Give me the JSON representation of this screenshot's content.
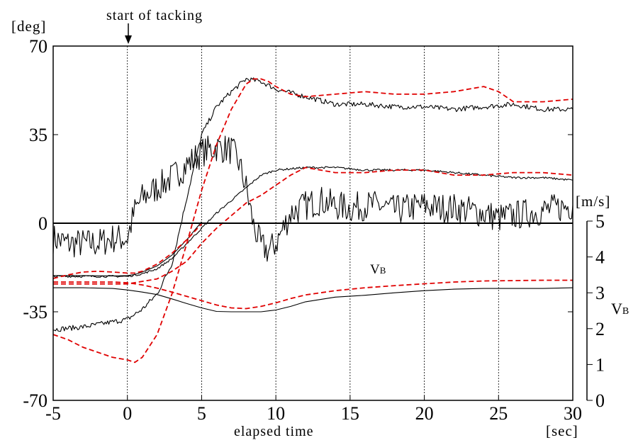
{
  "chart_data": {
    "type": "line",
    "xlabel": "elapsed time",
    "x_unit": "[sec]",
    "ylabel_left": "[deg]",
    "ylabel_right_unit": "[m/s]",
    "ylabel_right_main": "V",
    "ylabel_right_sub": "B",
    "curve_label_main": "V",
    "curve_label_sub": "B",
    "annotation": "start of tacking",
    "xlim": [
      -5,
      30
    ],
    "ylim_left": [
      -70,
      70
    ],
    "ylim_right": [
      0,
      5
    ],
    "x_ticks": [
      "-5",
      "0",
      "5",
      "10",
      "15",
      "20",
      "25",
      "30"
    ],
    "y_left_ticks": [
      "70",
      "35",
      "0",
      "-35",
      "-70"
    ],
    "y_right_ticks": [
      "5",
      "4",
      "3",
      "2",
      "1",
      "0"
    ],
    "vertical_gridlines": [
      0,
      5,
      10,
      15,
      20,
      25
    ],
    "zero_line": true,
    "colors": {
      "measured": "#000000",
      "simulated": "#e00000"
    },
    "series": [
      {
        "style": "solid",
        "color": "#000000",
        "axis": "left",
        "noise": 6,
        "x": [
          -5,
          -4,
          -3,
          -2,
          -1,
          0,
          0.5,
          1,
          2,
          3,
          4,
          5,
          6,
          7,
          7.5,
          8,
          8.5,
          9,
          9.5,
          10,
          10.5,
          11,
          12,
          13,
          14,
          15,
          16,
          17,
          18,
          19,
          20,
          21,
          22,
          23,
          24,
          25,
          26,
          27,
          28,
          29,
          30
        ],
        "y": [
          -6,
          -8,
          -8,
          -8,
          -6,
          -6,
          5,
          10,
          14,
          18,
          23,
          28,
          30,
          29,
          24,
          14,
          -1,
          -9,
          -11,
          -8,
          -2,
          4,
          7,
          9,
          7,
          6,
          7,
          7,
          5,
          6,
          7,
          6,
          6,
          5,
          4,
          2,
          3,
          4,
          5,
          6,
          7
        ]
      },
      {
        "style": "solid",
        "color": "#000000",
        "axis": "left",
        "noise": 1,
        "x": [
          -5,
          -3,
          -1,
          0,
          1,
          2,
          3,
          4,
          5,
          6,
          7,
          8,
          9,
          10,
          12,
          14,
          16,
          18,
          20,
          22,
          24,
          26,
          28,
          30
        ],
        "y": [
          -42,
          -41,
          -39,
          -38,
          -34,
          -28,
          -16,
          10,
          35,
          46,
          52,
          57,
          56,
          53,
          50,
          47,
          47,
          46,
          46,
          45,
          46,
          47,
          45,
          45
        ]
      },
      {
        "style": "solid",
        "color": "#000000",
        "axis": "left",
        "noise": 0.4,
        "x": [
          -5,
          -3,
          -1,
          0,
          1,
          2,
          3,
          4,
          5,
          6,
          7,
          8,
          9,
          10,
          12,
          14,
          16,
          18,
          20,
          22,
          24,
          26,
          28,
          30
        ],
        "y": [
          -21,
          -21,
          -21,
          -21,
          -20,
          -18,
          -14,
          -8,
          -2,
          4,
          9,
          14,
          19,
          21,
          22,
          22,
          21,
          21,
          21,
          20,
          19,
          18,
          18,
          17
        ]
      },
      {
        "style": "dashed",
        "color": "#e00000",
        "axis": "left",
        "x": [
          -5,
          -4,
          -3,
          -2,
          -1,
          0,
          0.5,
          1,
          2,
          3,
          4,
          5,
          6,
          7,
          8,
          8.5,
          9,
          9.5,
          10,
          11,
          12,
          14,
          16,
          18,
          20,
          22,
          24,
          25,
          26,
          28,
          30
        ],
        "y": [
          -44,
          -46,
          -49,
          -51,
          -53,
          -54,
          -55,
          -53,
          -44,
          -28,
          -8,
          13,
          31,
          45,
          55,
          57,
          57,
          56,
          54,
          51,
          50,
          51,
          52,
          51,
          51,
          52,
          54,
          52,
          48,
          48,
          49
        ]
      },
      {
        "style": "dashed",
        "color": "#e00000",
        "axis": "left",
        "x": [
          -5,
          -3,
          -1,
          0,
          1,
          2,
          3,
          4,
          5,
          6,
          7,
          8,
          9,
          10,
          11,
          12,
          13,
          14,
          16,
          18,
          20,
          22,
          24,
          26,
          28,
          30
        ],
        "y": [
          -24,
          -24,
          -24,
          -24,
          -23,
          -22,
          -19,
          -15,
          -8,
          -2,
          3,
          8,
          11,
          15,
          19,
          22,
          21,
          20,
          20,
          21,
          21,
          19,
          19,
          20,
          20,
          19
        ]
      },
      {
        "style": "solid",
        "color": "#000000",
        "axis": "right",
        "x": [
          -5,
          -3,
          -1,
          0,
          1,
          2,
          3,
          4,
          5,
          6,
          7,
          8,
          9,
          10,
          11,
          12,
          14,
          16,
          18,
          20,
          22,
          24,
          26,
          28,
          30
        ],
        "y": [
          3.14,
          3.14,
          3.12,
          3.08,
          3.02,
          2.95,
          2.83,
          2.7,
          2.58,
          2.48,
          2.47,
          2.47,
          2.47,
          2.52,
          2.62,
          2.75,
          2.88,
          2.93,
          3.0,
          3.06,
          3.1,
          3.12,
          3.12,
          3.12,
          3.14
        ]
      },
      {
        "style": "dashed",
        "color": "#e00000",
        "axis": "right",
        "x": [
          -5,
          -3,
          -1,
          0,
          1,
          2,
          3,
          4,
          5,
          6,
          7,
          8,
          9,
          10,
          11,
          12,
          14,
          16,
          18,
          20,
          22,
          24,
          26,
          28,
          30
        ],
        "y": [
          3.3,
          3.3,
          3.3,
          3.28,
          3.22,
          3.13,
          3.02,
          2.9,
          2.78,
          2.66,
          2.58,
          2.56,
          2.62,
          2.72,
          2.84,
          2.94,
          3.06,
          3.14,
          3.2,
          3.25,
          3.3,
          3.33,
          3.34,
          3.35,
          3.35
        ]
      },
      {
        "style": "solid",
        "color": "#000000",
        "axis": "right",
        "x": [
          -5,
          -3,
          -1,
          0,
          0.5,
          1,
          2,
          3,
          4,
          5
        ],
        "y": [
          3.48,
          3.48,
          3.47,
          3.48,
          3.51,
          3.58,
          3.75,
          4.05,
          4.48,
          4.98
        ]
      },
      {
        "style": "dashed",
        "color": "#e00000",
        "axis": "right",
        "x": [
          -5,
          -4,
          -3,
          -2,
          -1,
          0,
          0.5,
          1,
          2,
          3,
          4,
          5
        ],
        "y": [
          3.4,
          3.5,
          3.58,
          3.6,
          3.58,
          3.55,
          3.55,
          3.6,
          3.8,
          4.1,
          4.48,
          4.92
        ]
      }
    ]
  }
}
